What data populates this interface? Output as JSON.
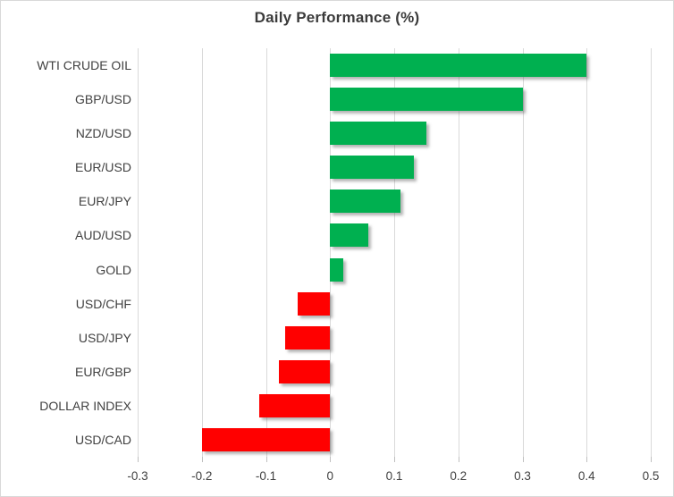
{
  "title": "Daily Performance (%)",
  "colors": {
    "positive_bar": "#00B050",
    "negative_bar": "#FF0000",
    "gridline": "#D9D9D9",
    "text": "#404040",
    "chart_border": "#D9D9D9",
    "background": "#FFFFFF"
  },
  "chart_data": {
    "type": "bar",
    "orientation": "horizontal",
    "title": "Daily Performance (%)",
    "categories": [
      "WTI CRUDE OIL",
      "GBP/USD",
      "NZD/USD",
      "EUR/USD",
      "EUR/JPY",
      "AUD/USD",
      "GOLD",
      "USD/CHF",
      "USD/JPY",
      "EUR/GBP",
      "DOLLAR INDEX",
      "USD/CAD"
    ],
    "values": [
      0.4,
      0.3,
      0.15,
      0.13,
      0.11,
      0.06,
      0.02,
      -0.05,
      -0.07,
      -0.08,
      -0.11,
      -0.2
    ],
    "xlabel": "",
    "ylabel": "",
    "xlim": [
      -0.3,
      0.5
    ],
    "x_ticks": [
      -0.3,
      -0.2,
      -0.1,
      0,
      0.1,
      0.2,
      0.3,
      0.4,
      0.5
    ],
    "x_tick_labels": [
      "-0.3",
      "-0.2",
      "-0.1",
      "0",
      "0.1",
      "0.2",
      "0.3",
      "0.4",
      "0.5"
    ],
    "grid": "vertical",
    "legend": false,
    "value_sign_colors": {
      "positive": "#00B050",
      "negative": "#FF0000"
    }
  }
}
